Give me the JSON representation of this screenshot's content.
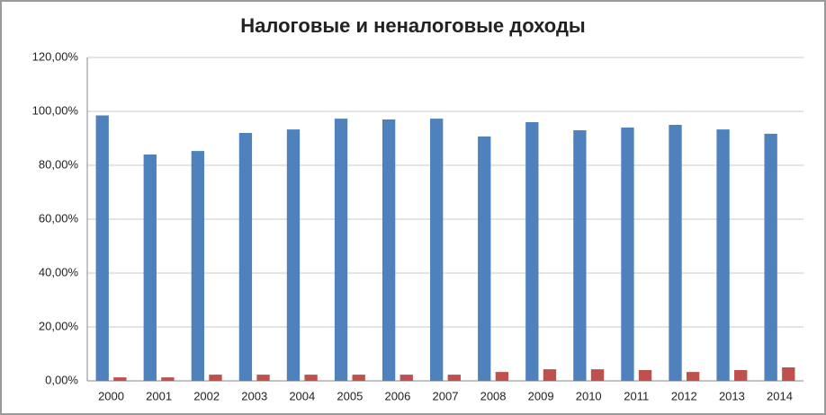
{
  "chart_data": {
    "type": "bar",
    "title": "Налоговые и неналоговые доходы",
    "categories": [
      "2000",
      "2001",
      "2002",
      "2003",
      "2004",
      "2005",
      "2006",
      "2007",
      "2008",
      "2009",
      "2010",
      "2011",
      "2012",
      "2013",
      "2014"
    ],
    "series": [
      {
        "color": "#4f81bd",
        "values": [
          98.5,
          84,
          85.3,
          92,
          93.3,
          97.3,
          97,
          97.3,
          90.7,
          96,
          93,
          94,
          95,
          93.3,
          91.7
        ]
      },
      {
        "color": "#c0504d",
        "values": [
          1.3,
          1.3,
          2.3,
          2.3,
          2.3,
          2.3,
          2.3,
          2.3,
          3.3,
          4.3,
          4.3,
          4,
          3.3,
          4,
          5
        ]
      }
    ],
    "ylim": [
      0,
      120
    ],
    "yticks": [
      {
        "value": 0,
        "label": "0,00%"
      },
      {
        "value": 20,
        "label": "20,00%"
      },
      {
        "value": 40,
        "label": "40,00%"
      },
      {
        "value": 60,
        "label": "60,00%"
      },
      {
        "value": 80,
        "label": "80,00%"
      },
      {
        "value": 100,
        "label": "100,00%"
      },
      {
        "value": 120,
        "label": "120,00%"
      }
    ],
    "grid": true
  }
}
